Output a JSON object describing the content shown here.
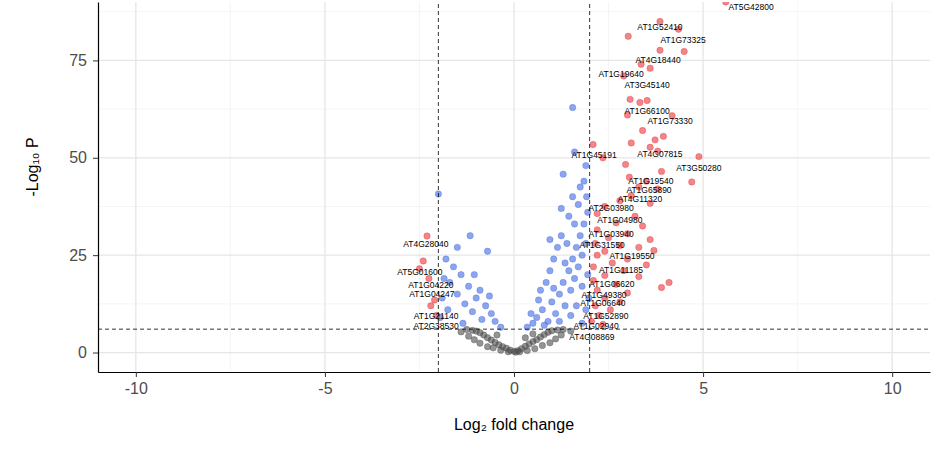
{
  "chart_data": {
    "type": "scatter",
    "x_label": "Log₂ fold change",
    "y_label": "-Log₁₀ P",
    "xlim": [
      -11,
      11
    ],
    "ylim": [
      -5,
      90
    ],
    "xticks": [
      -10,
      -5,
      0,
      5,
      10
    ],
    "yticks": [
      0,
      25,
      50,
      75
    ],
    "minor_xticks": [
      -7.5,
      -2.5,
      2.5,
      7.5
    ],
    "minor_yticks": [
      12.5,
      37.5,
      62.5,
      87.5
    ],
    "grid": true,
    "vlines": [
      -2,
      2
    ],
    "hline": 6,
    "series": [
      {
        "color": "#4d4d4d",
        "x": [
          0,
          0.1,
          -0.1,
          0.2,
          -0.2,
          0.3,
          -0.3,
          0.4,
          -0.4,
          0.5,
          -0.5,
          0.6,
          -0.6,
          0.7,
          -0.7,
          0.8,
          -0.8,
          0.9,
          -0.9,
          1.0,
          -1.0,
          1.15,
          -1.1,
          1.3,
          -1.25,
          0.15,
          -0.15,
          0.35,
          -0.35,
          0.55,
          -0.55,
          0.75,
          -0.7,
          0.95,
          -0.9,
          1.1,
          -1.05,
          1.25,
          -1.2,
          0.5,
          -0.45,
          0.3,
          1.5,
          -1.4,
          0.05
        ],
        "values": [
          0.3,
          0.5,
          0.6,
          1.0,
          1.1,
          1.6,
          1.5,
          2.2,
          2.0,
          2.8,
          2.6,
          3.3,
          3.2,
          4.0,
          3.8,
          4.6,
          4.5,
          5.2,
          5.1,
          5.6,
          5.5,
          5.8,
          5.7,
          5.9,
          5.9,
          0.2,
          0.2,
          0.5,
          0.6,
          1.0,
          1.2,
          1.8,
          1.5,
          2.5,
          2.4,
          3.5,
          3.3,
          4.5,
          4.2,
          4.8,
          4.5,
          3.8,
          5.5,
          5.3,
          0.1
        ]
      },
      {
        "color": "#4169e1",
        "x": [
          0.35,
          0.5,
          0.6,
          0.75,
          0.9,
          1.0,
          1.1,
          1.2,
          1.3,
          1.35,
          1.45,
          1.5,
          1.55,
          1.6,
          1.65,
          1.7,
          1.75,
          1.8,
          1.85,
          1.9,
          1.95,
          1.7,
          1.55,
          1.3,
          1.6,
          1.55,
          1.85,
          1.9,
          1.75,
          1.45,
          1.25,
          1.05,
          0.85,
          0.65,
          0.45,
          1.15,
          0.95,
          1.4,
          1.8,
          1.95,
          1.65,
          1.2,
          0.8,
          1.5,
          1.9,
          1.35,
          1.05,
          1.98,
          0.7,
          0.95,
          1.25,
          1.6,
          1.8,
          -0.35,
          -0.5,
          -0.6,
          -0.75,
          -0.85,
          -1.0,
          -1.1,
          -1.2,
          -1.3,
          -1.4,
          -1.5,
          -1.6,
          -1.7,
          -1.8,
          -1.9,
          -1.16,
          -0.7,
          -2.0,
          -1.5,
          -1.95,
          -0.9,
          -1.35,
          -1.75,
          -0.65,
          -1.05,
          -1.85,
          1.92
        ],
        "values": [
          6.5,
          7.5,
          9,
          11,
          8,
          13,
          10,
          15,
          18,
          12,
          21,
          16,
          24,
          19,
          27,
          22,
          30,
          25,
          33,
          28,
          36,
          38,
          40,
          45.8,
          51.5,
          62.9,
          44,
          48,
          42.5,
          35,
          30,
          24,
          18,
          13.5,
          10,
          27,
          21,
          28,
          17,
          20,
          12,
          8,
          7,
          9.5,
          11,
          23,
          16.5,
          14,
          16,
          29,
          37,
          33,
          7.5,
          6.5,
          8,
          10,
          12,
          8.5,
          14,
          10.5,
          17,
          12.5,
          20,
          15,
          22,
          18,
          24,
          14,
          30,
          26,
          40.7,
          27,
          9,
          16,
          7.5,
          11,
          14.5,
          20,
          19,
          40
        ]
      },
      {
        "color": "#e8343a",
        "x": [
          3.02,
          3.86,
          4.35,
          3.86,
          4.5,
          3.36,
          3.6,
          2.9,
          3.07,
          3.33,
          3.52,
          3.0,
          4.18,
          3.73,
          3.95,
          3.6,
          2.09,
          3.1,
          2.35,
          4.89,
          3.8,
          2.95,
          3.9,
          4.7,
          3.05,
          3.5,
          3.3,
          3.8,
          3.1,
          2.8,
          3.6,
          2.4,
          2.2,
          3.2,
          2.7,
          3.4,
          2.2,
          3.0,
          2.5,
          3.6,
          2.15,
          2.8,
          3.3,
          2.4,
          3.7,
          2.2,
          3.0,
          2.6,
          3.5,
          2.1,
          2.9,
          2.4,
          3.3,
          2.1,
          2.7,
          3.9,
          2.2,
          3.0,
          2.4,
          2.8,
          2.15,
          2.55,
          2.25,
          2.05,
          2.35,
          -2.3,
          -2.4,
          -2.5,
          -2.25,
          -2.1,
          -2.2,
          -2.05,
          5.6,
          4.1,
          3.4
        ],
        "values": [
          81.2,
          85,
          83,
          77.6,
          77.3,
          74,
          73,
          71,
          65,
          64.2,
          64.7,
          61,
          60.8,
          54.6,
          55.5,
          52.7,
          53.4,
          53.8,
          50,
          50.3,
          51.7,
          48.3,
          46.5,
          43.8,
          45,
          44,
          42.5,
          42,
          40.3,
          39,
          38.3,
          37.5,
          35.7,
          35,
          33.3,
          32.5,
          31.5,
          30.5,
          29.5,
          29,
          28,
          27.5,
          27,
          26,
          26.2,
          25,
          24,
          23,
          22.5,
          22,
          21,
          19.8,
          19.5,
          18.5,
          17.5,
          16.7,
          16,
          15.3,
          14,
          13,
          12,
          11,
          9.5,
          8,
          7.2,
          29.9,
          23.5,
          21.5,
          19,
          13.5,
          12,
          9.5,
          90,
          18,
          57
        ]
      }
    ],
    "annotations": [
      {
        "text": "AT5G42800",
        "x": 6.27,
        "y": 88.7
      },
      {
        "text": "AT1G52410",
        "x": 3.86,
        "y": 83.5
      },
      {
        "text": "AT1G73325",
        "x": 4.47,
        "y": 80.2
      },
      {
        "text": "AT4G18440",
        "x": 3.81,
        "y": 75.0
      },
      {
        "text": "AT1G19640",
        "x": 2.83,
        "y": 71.4
      },
      {
        "text": "AT3G45140",
        "x": 3.52,
        "y": 68.8
      },
      {
        "text": "AT1G66100",
        "x": 3.52,
        "y": 61.9
      },
      {
        "text": "AT1G73330",
        "x": 4.13,
        "y": 59.5
      },
      {
        "text": "AT1G45191",
        "x": 2.12,
        "y": 50.8
      },
      {
        "text": "AT4G07815",
        "x": 3.86,
        "y": 51.0
      },
      {
        "text": "AT3G50280",
        "x": 4.89,
        "y": 47.4
      },
      {
        "text": "AT1G19540",
        "x": 3.62,
        "y": 44.1
      },
      {
        "text": "AT1G65890",
        "x": 3.57,
        "y": 41.8
      },
      {
        "text": "AT4G11320",
        "x": 3.33,
        "y": 39.4
      },
      {
        "text": "AT2G03980",
        "x": 2.57,
        "y": 37.1
      },
      {
        "text": "AT1G04980",
        "x": 2.8,
        "y": 34.0
      },
      {
        "text": "AT1G03940",
        "x": 2.57,
        "y": 30.4
      },
      {
        "text": "AT1G31550",
        "x": 2.33,
        "y": 27.6
      },
      {
        "text": "AT1G19550",
        "x": 3.12,
        "y": 24.7
      },
      {
        "text": "AT1G11185",
        "x": 2.83,
        "y": 21.1
      },
      {
        "text": "AT1G06620",
        "x": 2.59,
        "y": 17.5
      },
      {
        "text": "AT1G49380",
        "x": 2.38,
        "y": 14.7
      },
      {
        "text": "AT1G06640",
        "x": 2.35,
        "y": 12.6
      },
      {
        "text": "AT1G52890",
        "x": 2.43,
        "y": 9.5
      },
      {
        "text": "AT1G02940",
        "x": 2.17,
        "y": 6.7
      },
      {
        "text": "AT4G08869",
        "x": 2.06,
        "y": 3.9
      },
      {
        "text": "AT4G28040",
        "x": -2.33,
        "y": 27.8
      },
      {
        "text": "AT5G01600",
        "x": -2.49,
        "y": 20.6
      },
      {
        "text": "AT1G04220",
        "x": -2.2,
        "y": 17.3
      },
      {
        "text": "AT1G04247",
        "x": -2.17,
        "y": 14.9
      },
      {
        "text": "AT1G21140",
        "x": -2.06,
        "y": 9.3
      },
      {
        "text": "AT2G38530",
        "x": -2.06,
        "y": 6.7
      }
    ]
  }
}
